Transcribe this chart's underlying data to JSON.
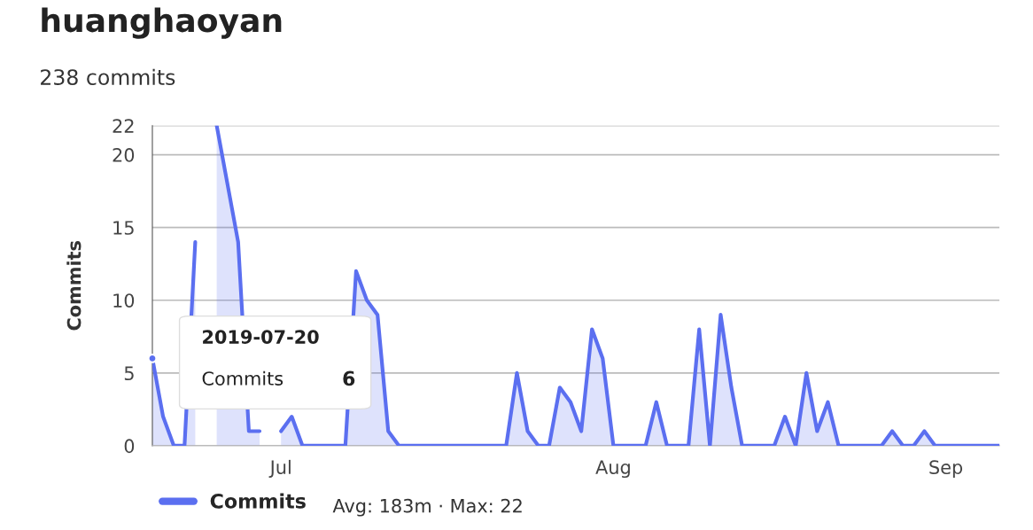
{
  "chart_data": {
    "type": "area",
    "title": "huanghaoyan",
    "subtitle": "238 commits",
    "ylabel": "Commits",
    "x": [
      "2019-06-19",
      "2019-06-20",
      "2019-06-21",
      "2019-06-22",
      "2019-06-23",
      "2019-06-24",
      "2019-06-25",
      "2019-06-26",
      "2019-06-27",
      "2019-06-28",
      "2019-06-29",
      "2019-06-30",
      "2019-07-01",
      "2019-07-02",
      "2019-07-03",
      "2019-07-04",
      "2019-07-05",
      "2019-07-06",
      "2019-07-07",
      "2019-07-08",
      "2019-07-09",
      "2019-07-10",
      "2019-07-11",
      "2019-07-12",
      "2019-07-13",
      "2019-07-14",
      "2019-07-15",
      "2019-07-16",
      "2019-07-17",
      "2019-07-18",
      "2019-07-19",
      "2019-07-20",
      "2019-07-21",
      "2019-07-22",
      "2019-07-23",
      "2019-07-24",
      "2019-07-25",
      "2019-07-26",
      "2019-07-27",
      "2019-07-28",
      "2019-07-29",
      "2019-07-30",
      "2019-07-31",
      "2019-08-01",
      "2019-08-02",
      "2019-08-03",
      "2019-08-04",
      "2019-08-05",
      "2019-08-06",
      "2019-08-07",
      "2019-08-08",
      "2019-08-09",
      "2019-08-10",
      "2019-08-11",
      "2019-08-12",
      "2019-08-13",
      "2019-08-14",
      "2019-08-15",
      "2019-08-16",
      "2019-08-17",
      "2019-08-18",
      "2019-08-19",
      "2019-08-20",
      "2019-08-21",
      "2019-08-22",
      "2019-08-23",
      "2019-08-24",
      "2019-08-25",
      "2019-08-26",
      "2019-08-27",
      "2019-08-28",
      "2019-08-29",
      "2019-08-30",
      "2019-08-31",
      "2019-09-01",
      "2019-09-02",
      "2019-09-03",
      "2019-09-04",
      "2019-09-05",
      "2019-09-06"
    ],
    "series": [
      {
        "name": "Commits",
        "color": "#5b6ff0",
        "values": [
          6,
          2,
          0,
          0,
          14,
          null,
          22,
          18,
          14,
          1,
          1,
          null,
          1,
          2,
          0,
          0,
          0,
          0,
          0,
          12,
          10,
          9,
          1,
          0,
          0,
          0,
          0,
          0,
          0,
          0,
          0,
          0,
          0,
          0,
          5,
          1,
          0,
          0,
          4,
          3,
          1,
          8,
          6,
          0,
          0,
          0,
          0,
          3,
          0,
          0,
          0,
          8,
          0,
          9,
          4,
          0,
          0,
          0,
          0,
          2,
          0,
          5,
          1,
          3,
          0,
          0,
          0,
          0,
          0,
          1,
          0,
          0,
          1,
          0,
          0,
          0,
          0,
          0,
          0,
          0
        ]
      }
    ],
    "xlim": [
      "2019-06-19",
      "2019-09-06"
    ],
    "xticks": [
      {
        "value": "2019-07-01",
        "label": "Jul"
      },
      {
        "value": "2019-08-01",
        "label": "Aug"
      },
      {
        "value": "2019-09-01",
        "label": "Sep"
      }
    ],
    "ylim": [
      0,
      22
    ],
    "yticks": [
      0,
      5,
      10,
      15,
      20,
      22
    ],
    "grid": "y",
    "legend": "bottom",
    "annotations": [
      "2019-07-20",
      "Commits",
      "6",
      "Avg: 183m · Max: 22"
    ]
  }
}
